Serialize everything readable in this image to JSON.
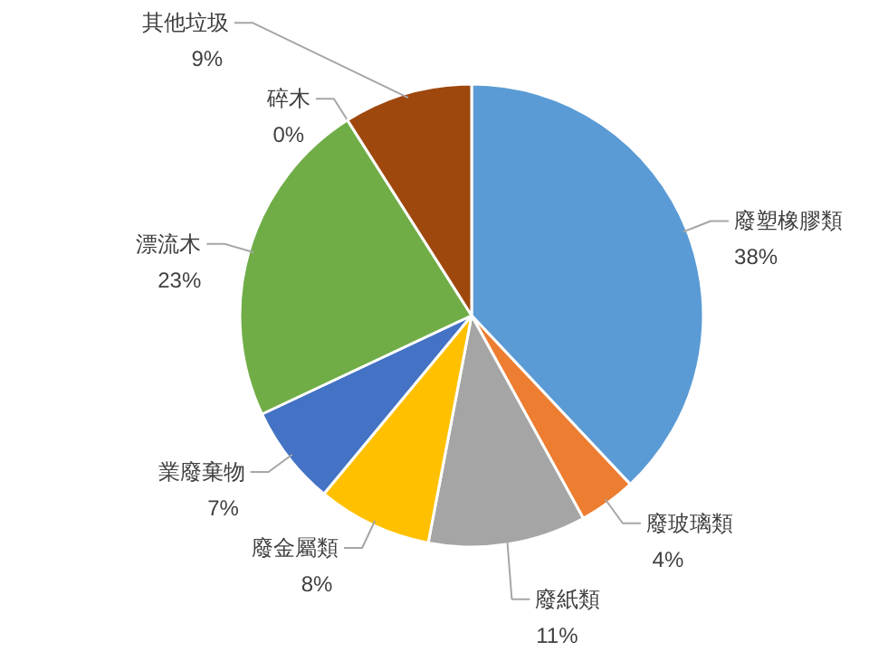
{
  "chart_data": {
    "type": "pie",
    "categories": [
      "廢塑橡膠類",
      "廢玻璃類",
      "廢紙類",
      "廢金屬類",
      "業廢棄物",
      "漂流木",
      "碎木",
      "其他垃圾"
    ],
    "values": [
      38,
      4,
      11,
      8,
      7,
      23,
      0,
      9
    ],
    "colors": [
      "#5b9bd5",
      "#ed7d31",
      "#a5a5a5",
      "#ffc000",
      "#4472c4",
      "#70ad47",
      "#264478",
      "#9e480e"
    ],
    "value_labels": [
      "38%",
      "4%",
      "11%",
      "8%",
      "7%",
      "23%",
      "0%",
      "9%"
    ]
  }
}
